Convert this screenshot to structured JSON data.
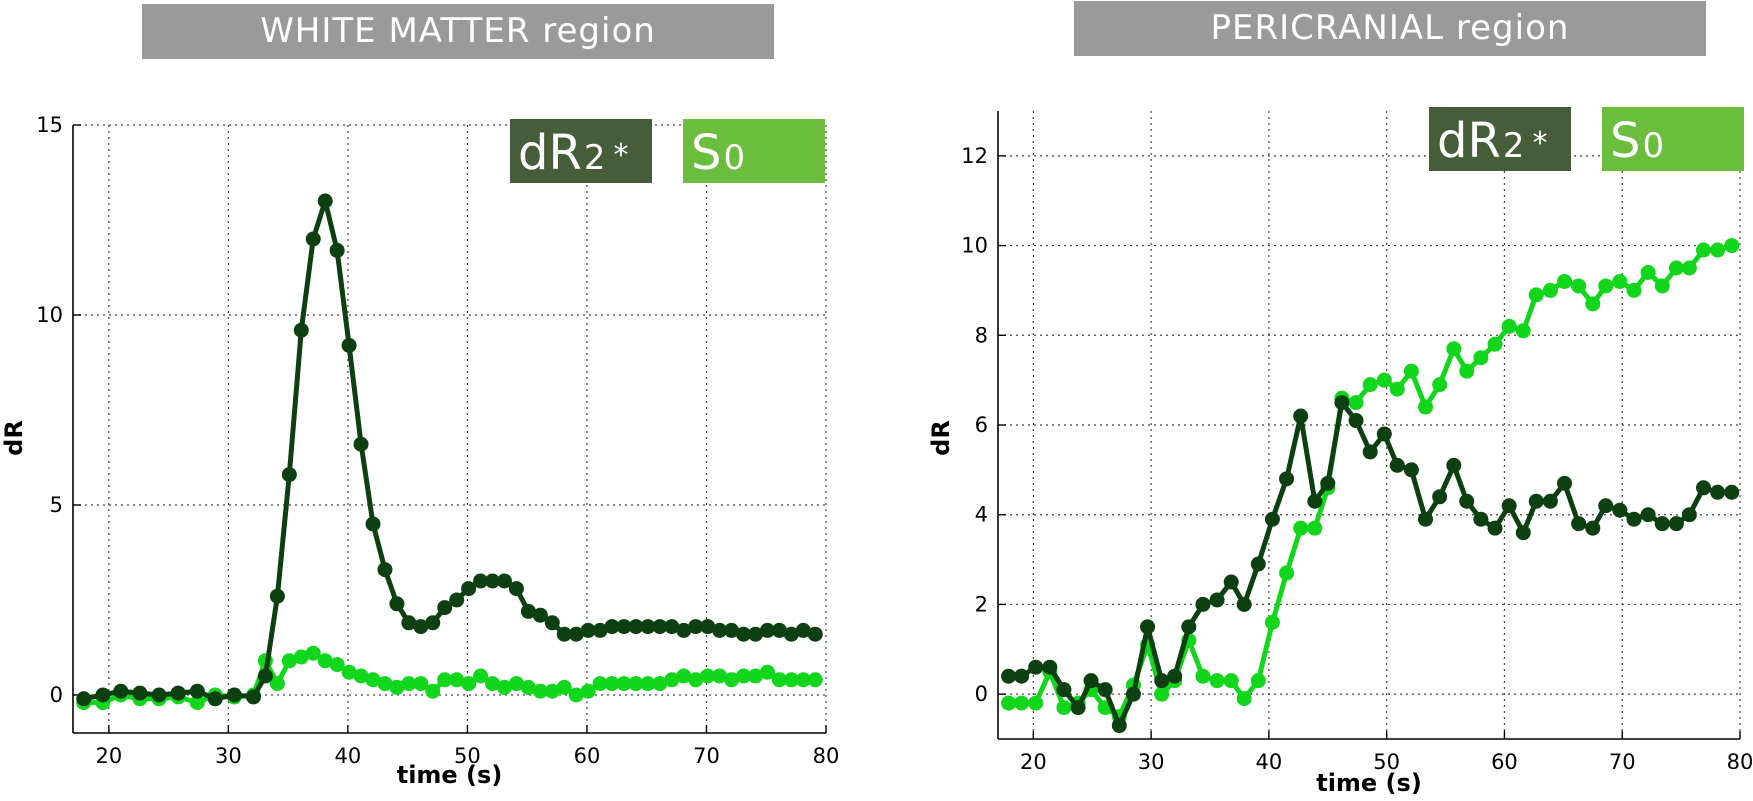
{
  "colors": {
    "dR2": "#0d4010",
    "S0": "#11d61b",
    "legend_dR2_box": "#465d3a",
    "legend_S0_box": "#6abd3d",
    "banner": "#9a9a9a"
  },
  "chart_data": [
    {
      "type": "line",
      "title": "WHITE MATTER region",
      "xlabel": "time (s)",
      "ylabel": "dR",
      "xlim": [
        17,
        80
      ],
      "ylim": [
        -1,
        15
      ],
      "xticks": [
        20,
        30,
        40,
        50,
        60,
        70,
        80
      ],
      "yticks": [
        0,
        5,
        10,
        15
      ],
      "grid": true,
      "legend": [
        {
          "main": "dR",
          "sub": "2",
          "suffix": "*"
        },
        {
          "main": "S",
          "sub": "0",
          "suffix": ""
        }
      ],
      "series": [
        {
          "key": "dR2",
          "x": [
            17.9,
            19.5,
            21.0,
            22.6,
            24.2,
            25.8,
            27.4,
            28.9,
            30.5,
            32.1,
            33.1,
            34.1,
            35.1,
            36.1,
            37.1,
            38.1,
            39.1,
            40.1,
            41.1,
            42.1,
            43.1,
            44.1,
            45.1,
            46.1,
            47.1,
            48.1,
            49.1,
            50.1,
            51.1,
            52.1,
            53.1,
            54.1,
            55.1,
            56.1,
            57.1,
            58.1,
            59.1,
            60.1,
            61.1,
            62.1,
            63.1,
            64.1,
            65.1,
            66.1,
            67.1,
            68.1,
            69.1,
            70.1,
            71.1,
            72.1,
            73.1,
            74.1,
            75.1,
            76.1,
            77.1,
            78.1,
            79.1
          ],
          "y": [
            -0.1,
            0.0,
            0.1,
            0.05,
            0.0,
            0.05,
            0.1,
            -0.1,
            0.0,
            -0.05,
            0.5,
            2.6,
            5.8,
            9.6,
            12.0,
            13.0,
            11.7,
            9.2,
            6.6,
            4.5,
            3.3,
            2.4,
            1.9,
            1.8,
            1.9,
            2.3,
            2.5,
            2.8,
            3.0,
            3.0,
            3.0,
            2.8,
            2.2,
            2.1,
            1.9,
            1.6,
            1.6,
            1.7,
            1.7,
            1.8,
            1.8,
            1.8,
            1.8,
            1.8,
            1.8,
            1.7,
            1.8,
            1.8,
            1.7,
            1.7,
            1.6,
            1.6,
            1.7,
            1.7,
            1.6,
            1.7,
            1.6
          ]
        },
        {
          "key": "S0",
          "x": [
            17.9,
            19.5,
            21.0,
            22.6,
            24.2,
            25.8,
            27.4,
            28.9,
            30.5,
            32.1,
            33.1,
            34.1,
            35.1,
            36.1,
            37.1,
            38.1,
            39.1,
            40.1,
            41.1,
            42.1,
            43.1,
            44.1,
            45.1,
            46.1,
            47.1,
            48.1,
            49.1,
            50.1,
            51.1,
            52.1,
            53.1,
            54.1,
            55.1,
            56.1,
            57.1,
            58.1,
            59.1,
            60.1,
            61.1,
            62.1,
            63.1,
            64.1,
            65.1,
            66.1,
            67.1,
            68.1,
            69.1,
            70.1,
            71.1,
            72.1,
            73.1,
            74.1,
            75.1,
            76.1,
            77.1,
            78.1,
            79.1
          ],
          "y": [
            -0.2,
            -0.2,
            0.0,
            -0.1,
            -0.1,
            -0.05,
            -0.2,
            0.0,
            -0.05,
            0.0,
            0.9,
            0.3,
            0.9,
            1.0,
            1.1,
            0.9,
            0.8,
            0.6,
            0.5,
            0.4,
            0.3,
            0.2,
            0.3,
            0.3,
            0.1,
            0.4,
            0.4,
            0.3,
            0.5,
            0.3,
            0.2,
            0.3,
            0.2,
            0.1,
            0.1,
            0.2,
            0.0,
            0.1,
            0.3,
            0.3,
            0.3,
            0.3,
            0.3,
            0.3,
            0.4,
            0.5,
            0.4,
            0.5,
            0.5,
            0.4,
            0.5,
            0.5,
            0.6,
            0.4,
            0.4,
            0.4,
            0.4
          ]
        }
      ]
    },
    {
      "type": "line",
      "title": "PERICRANIAL region",
      "xlabel": "time (s)",
      "ylabel": "dR",
      "xlim": [
        17,
        80
      ],
      "ylim": [
        -1,
        13
      ],
      "xticks": [
        20,
        30,
        40,
        50,
        60,
        70,
        80
      ],
      "yticks": [
        0,
        2,
        4,
        6,
        8,
        10,
        12
      ],
      "grid": true,
      "legend": [
        {
          "main": "dR",
          "sub": "2",
          "suffix": "*"
        },
        {
          "main": "S",
          "sub": "0",
          "suffix": ""
        }
      ],
      "series": [
        {
          "key": "dR2",
          "x": [
            17.9,
            19.0,
            20.2,
            21.4,
            22.6,
            23.8,
            24.9,
            26.1,
            27.3,
            28.5,
            29.7,
            30.9,
            32.0,
            33.2,
            34.4,
            35.6,
            36.8,
            37.9,
            39.1,
            40.3,
            41.5,
            42.7,
            43.9,
            45.0,
            46.2,
            47.4,
            48.6,
            49.8,
            50.9,
            52.1,
            53.3,
            54.5,
            55.7,
            56.8,
            58.0,
            59.2,
            60.4,
            61.6,
            62.7,
            63.9,
            65.1,
            66.3,
            67.5,
            68.6,
            69.8,
            71.0,
            72.2,
            73.4,
            74.6,
            75.7,
            76.9,
            78.1,
            79.3
          ],
          "y": [
            0.4,
            0.4,
            0.6,
            0.6,
            0.1,
            -0.3,
            0.3,
            0.1,
            -0.7,
            0.0,
            1.5,
            0.3,
            0.4,
            1.5,
            2.0,
            2.1,
            2.5,
            2.0,
            2.9,
            3.9,
            4.8,
            6.2,
            4.3,
            4.7,
            6.5,
            6.1,
            5.4,
            5.8,
            5.1,
            5.0,
            3.9,
            4.4,
            5.1,
            4.3,
            3.9,
            3.7,
            4.2,
            3.6,
            4.3,
            4.3,
            4.7,
            3.8,
            3.7,
            4.2,
            4.1,
            3.9,
            4.0,
            3.8,
            3.8,
            4.0,
            4.6,
            4.5,
            4.5
          ]
        },
        {
          "key": "S0",
          "x": [
            17.9,
            19.0,
            20.2,
            21.4,
            22.6,
            23.8,
            24.9,
            26.1,
            27.3,
            28.5,
            29.7,
            30.9,
            32.0,
            33.2,
            34.4,
            35.6,
            36.8,
            37.9,
            39.1,
            40.3,
            41.5,
            42.7,
            43.9,
            45.0,
            46.2,
            47.4,
            48.6,
            49.8,
            50.9,
            52.1,
            53.3,
            54.5,
            55.7,
            56.8,
            58.0,
            59.2,
            60.4,
            61.6,
            62.7,
            63.9,
            65.1,
            66.3,
            67.5,
            68.6,
            69.8,
            71.0,
            72.2,
            73.4,
            74.6,
            75.7,
            76.9,
            78.1,
            79.3
          ],
          "y": [
            -0.2,
            -0.2,
            -0.2,
            0.5,
            -0.3,
            -0.2,
            0.1,
            -0.3,
            -0.5,
            0.2,
            1.1,
            0.0,
            0.3,
            1.2,
            0.4,
            0.3,
            0.3,
            -0.1,
            0.3,
            1.6,
            2.7,
            3.7,
            3.7,
            4.6,
            6.6,
            6.5,
            6.9,
            7.0,
            6.8,
            7.2,
            6.4,
            6.9,
            7.7,
            7.2,
            7.5,
            7.8,
            8.2,
            8.1,
            8.9,
            9.0,
            9.2,
            9.1,
            8.7,
            9.1,
            9.2,
            9.0,
            9.4,
            9.1,
            9.5,
            9.5,
            9.9,
            9.9,
            10.0
          ]
        }
      ]
    }
  ]
}
